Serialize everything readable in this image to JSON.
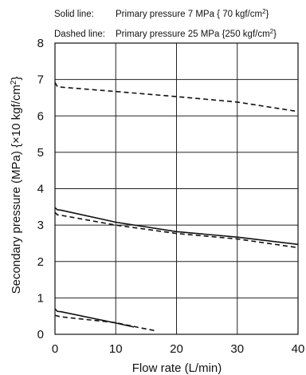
{
  "chart_data": {
    "type": "line",
    "legend": {
      "solid_prefix": "Solid line:",
      "solid_text": "Primary pressure  7 MPa { 70 kgf/cm",
      "dashed_prefix": "Dashed line:",
      "dashed_text": "Primary pressure 25 MPa {250 kgf/cm",
      "unit_superscript": "2",
      "unit_close": "}"
    },
    "xlabel": "Flow rate (L/min)",
    "ylabel": {
      "main": "Secondary pressure (MPa) {×10 kgf/cm",
      "superscript": "2",
      "close": "}"
    },
    "xlim": [
      0,
      40
    ],
    "ylim": [
      0,
      8
    ],
    "xticks": [
      "0",
      "10",
      "20",
      "30",
      "40"
    ],
    "yticks": [
      "0",
      "1",
      "2",
      "3",
      "4",
      "5",
      "6",
      "7",
      "8"
    ],
    "grid": true,
    "series": [
      {
        "style": "dashed",
        "x": [
          0,
          0.4,
          1,
          10,
          20,
          30,
          40
        ],
        "y": [
          6.92,
          6.8,
          6.79,
          6.67,
          6.53,
          6.38,
          6.12
        ]
      },
      {
        "style": "solid",
        "x": [
          0,
          0.4,
          1,
          10,
          20,
          30,
          40
        ],
        "y": [
          3.48,
          3.42,
          3.41,
          3.08,
          2.82,
          2.67,
          2.47
        ]
      },
      {
        "style": "dashed",
        "x": [
          0,
          0.4,
          1,
          10,
          20,
          30,
          40
        ],
        "y": [
          3.35,
          3.28,
          3.27,
          3.0,
          2.77,
          2.62,
          2.38
        ]
      },
      {
        "style": "solid",
        "x": [
          0,
          0.4,
          1,
          10,
          13
        ],
        "y": [
          0.7,
          0.63,
          0.62,
          0.31,
          0.2
        ]
      },
      {
        "style": "dashed",
        "x": [
          0,
          1,
          10,
          14,
          16.5
        ],
        "y": [
          0.52,
          0.48,
          0.32,
          0.18,
          0.1
        ]
      }
    ],
    "colors": {
      "line": "#111111",
      "grid": "#222222",
      "background": "#ffffff"
    }
  }
}
